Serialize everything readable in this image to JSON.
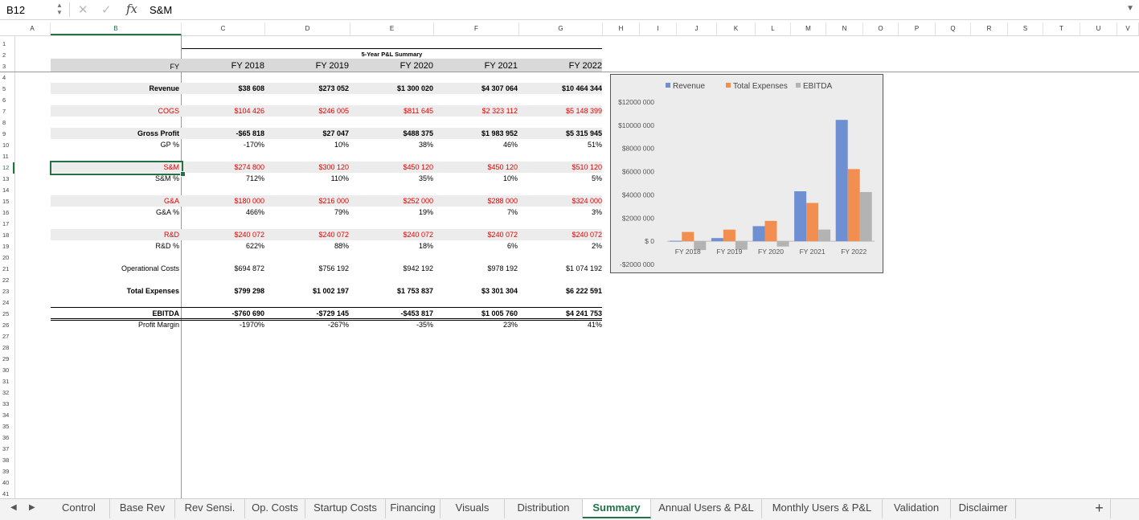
{
  "formula_bar": {
    "name_box": "B12",
    "content": "S&M",
    "fx": "fx"
  },
  "columns": [
    "A",
    "B",
    "C",
    "D",
    "E",
    "F",
    "G",
    "H",
    "I",
    "J",
    "K",
    "L",
    "M",
    "N",
    "O",
    "P",
    "Q",
    "R",
    "S",
    "T",
    "U",
    "V"
  ],
  "rows": [
    "1",
    "2",
    "3",
    "4",
    "5",
    "6",
    "7",
    "8",
    "9",
    "10",
    "11",
    "12",
    "13",
    "14",
    "15",
    "16",
    "17",
    "18",
    "19",
    "20",
    "21",
    "22",
    "23",
    "24",
    "25",
    "26",
    "27",
    "28",
    "29",
    "30",
    "31",
    "32",
    "33",
    "34",
    "35",
    "36",
    "37",
    "38",
    "39",
    "40",
    "41"
  ],
  "sheet": {
    "title": "5-Year P&L Summary",
    "fy_label": "FY",
    "years": [
      "FY 2018",
      "FY 2019",
      "FY 2020",
      "FY 2021",
      "FY 2022"
    ],
    "lines": [
      {
        "label": "Revenue",
        "values": [
          "$38 608",
          "$273 052",
          "$1 300 020",
          "$4 307 064",
          "$10 464 344"
        ]
      },
      {
        "label": "COGS",
        "values": [
          "$104 426",
          "$246 005",
          "$811 645",
          "$2 323 112",
          "$5 148 399"
        ]
      },
      {
        "label": "Gross Profit",
        "values": [
          "-$65 818",
          "$27 047",
          "$488 375",
          "$1 983 952",
          "$5 315 945"
        ]
      },
      {
        "label": "GP %",
        "values": [
          "-170%",
          "10%",
          "38%",
          "46%",
          "51%"
        ]
      },
      {
        "label": "S&M",
        "values": [
          "$274 800",
          "$300 120",
          "$450 120",
          "$450 120",
          "$510 120"
        ]
      },
      {
        "label": "S&M %",
        "values": [
          "712%",
          "110%",
          "35%",
          "10%",
          "5%"
        ]
      },
      {
        "label": "G&A",
        "values": [
          "$180 000",
          "$216 000",
          "$252 000",
          "$288 000",
          "$324 000"
        ]
      },
      {
        "label": "G&A %",
        "values": [
          "466%",
          "79%",
          "19%",
          "7%",
          "3%"
        ]
      },
      {
        "label": "R&D",
        "values": [
          "$240 072",
          "$240 072",
          "$240 072",
          "$240 072",
          "$240 072"
        ]
      },
      {
        "label": "R&D %",
        "values": [
          "622%",
          "88%",
          "18%",
          "6%",
          "2%"
        ]
      },
      {
        "label": "Operational Costs",
        "values": [
          "$694 872",
          "$756 192",
          "$942 192",
          "$978 192",
          "$1 074 192"
        ]
      },
      {
        "label": "Total Expenses",
        "values": [
          "$799 298",
          "$1 002 197",
          "$1 753 837",
          "$3 301 304",
          "$6 222 591"
        ]
      },
      {
        "label": "EBITDA",
        "values": [
          "-$760 690",
          "-$729 145",
          "-$453 817",
          "$1 005 760",
          "$4 241 753"
        ]
      },
      {
        "label": "Profit Margin",
        "values": [
          "-1970%",
          "-267%",
          "-35%",
          "23%",
          "41%"
        ]
      }
    ]
  },
  "colors": {
    "revenue": "#6f8fd3",
    "expenses": "#f28e4f",
    "ebitda": "#b3b3b3",
    "accent": "#217346",
    "negative": "#e00000"
  },
  "chart_data": {
    "type": "bar",
    "categories": [
      "FY 2018",
      "FY 2019",
      "FY 2020",
      "FY 2021",
      "FY 2022"
    ],
    "series": [
      {
        "name": "Revenue",
        "values": [
          38608,
          273052,
          1300020,
          4307064,
          10464344
        ]
      },
      {
        "name": "Total Expenses",
        "values": [
          799298,
          1002197,
          1753837,
          3301304,
          6222591
        ]
      },
      {
        "name": "EBITDA",
        "values": [
          -760690,
          -729145,
          -453817,
          1005760,
          4241753
        ]
      }
    ],
    "ylim": [
      -2000000,
      12000000
    ],
    "yticks": [
      "$12000 000",
      "$10000 000",
      "$8000 000",
      "$6000 000",
      "$4000 000",
      "$2000 000",
      "$ 0",
      "-$2000 000"
    ],
    "legend": "top",
    "grid": false
  },
  "tabs": [
    "Control",
    "Base Rev",
    "Rev Sensi.",
    "Op. Costs",
    "Startup Costs",
    "Financing",
    "Visuals",
    "Distribution",
    "Summary",
    "Annual Users & P&L",
    "Monthly Users & P&L",
    "Validation",
    "Disclaimer"
  ],
  "active_tab": "Summary",
  "add_sheet": "+"
}
